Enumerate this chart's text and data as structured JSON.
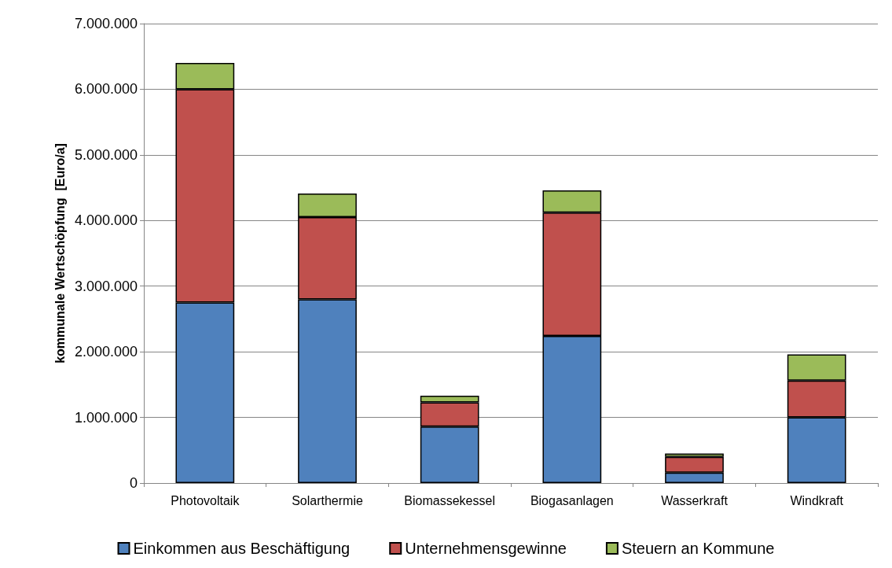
{
  "chart_data": {
    "type": "bar",
    "stacked": true,
    "ylabel": "kommunale Wertschöpfung  [Euro/a]",
    "categories": [
      "Photovoltaik",
      "Solarthermie",
      "Biomassekessel",
      "Biogasanlagen",
      "Wasserkraft",
      "Windkraft"
    ],
    "series": [
      {
        "name": "Einkommen aus Beschäftigung",
        "color": "#4f81bd",
        "values": [
          2750000,
          2800000,
          860000,
          2240000,
          160000,
          1000000
        ]
      },
      {
        "name": "Unternehmensgewinne",
        "color": "#c0504d",
        "values": [
          3250000,
          1250000,
          370000,
          1880000,
          240000,
          560000
        ]
      },
      {
        "name": "Steuern an Kommune",
        "color": "#9bbb59",
        "values": [
          400000,
          360000,
          100000,
          340000,
          50000,
          400000
        ]
      }
    ],
    "ylim": [
      0,
      7000000
    ],
    "yticks": [
      {
        "value": 0,
        "label": "0"
      },
      {
        "value": 1000000,
        "label": "1.000.000"
      },
      {
        "value": 2000000,
        "label": "2.000.000"
      },
      {
        "value": 3000000,
        "label": "3.000.000"
      },
      {
        "value": 4000000,
        "label": "4.000.000"
      },
      {
        "value": 5000000,
        "label": "5.000.000"
      },
      {
        "value": 6000000,
        "label": "6.000.000"
      },
      {
        "value": 7000000,
        "label": "7.000.000"
      }
    ],
    "grid": true,
    "legend": "bottom"
  }
}
